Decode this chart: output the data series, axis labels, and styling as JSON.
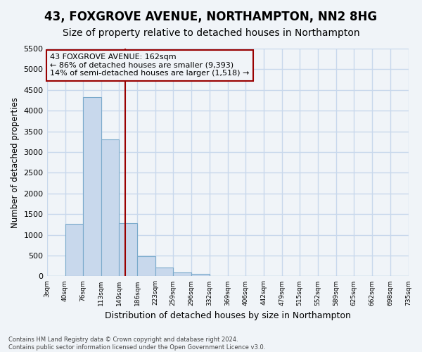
{
  "title": "43, FOXGROVE AVENUE, NORTHAMPTON, NN2 8HG",
  "subtitle": "Size of property relative to detached houses in Northampton",
  "xlabel": "Distribution of detached houses by size in Northampton",
  "ylabel": "Number of detached properties",
  "footer_line1": "Contains HM Land Registry data © Crown copyright and database right 2024.",
  "footer_line2": "Contains public sector information licensed under the Open Government Licence v3.0.",
  "bar_values": [
    0,
    1270,
    4330,
    3300,
    1290,
    490,
    210,
    85,
    55,
    0,
    0,
    0,
    0,
    0,
    0,
    0,
    0,
    0,
    0,
    0
  ],
  "bin_edges": [
    3,
    40,
    76,
    113,
    149,
    186,
    223,
    259,
    296,
    332,
    369,
    406,
    442,
    479,
    515,
    552,
    589,
    625,
    662,
    698,
    735
  ],
  "bin_labels": [
    "3sqm",
    "40sqm",
    "76sqm",
    "113sqm",
    "149sqm",
    "186sqm",
    "223sqm",
    "259sqm",
    "296sqm",
    "332sqm",
    "369sqm",
    "406sqm",
    "442sqm",
    "479sqm",
    "515sqm",
    "552sqm",
    "589sqm",
    "625sqm",
    "662sqm",
    "698sqm",
    "735sqm"
  ],
  "ylim": [
    0,
    5500
  ],
  "bar_color": "#c8d8ec",
  "bar_edge_color": "#7aaacb",
  "vline_x": 162,
  "vline_color": "#990000",
  "annotation_text_line1": "43 FOXGROVE AVENUE: 162sqm",
  "annotation_text_line2": "← 86% of detached houses are smaller (9,393)",
  "annotation_text_line3": "14% of semi-detached houses are larger (1,518) →",
  "annotation_box_color": "#990000",
  "bg_color": "#f0f4f8",
  "grid_color": "#c8d8ec",
  "title_fontsize": 12,
  "subtitle_fontsize": 10,
  "yticks": [
    0,
    500,
    1000,
    1500,
    2000,
    2500,
    3000,
    3500,
    4000,
    4500,
    5000,
    5500
  ]
}
